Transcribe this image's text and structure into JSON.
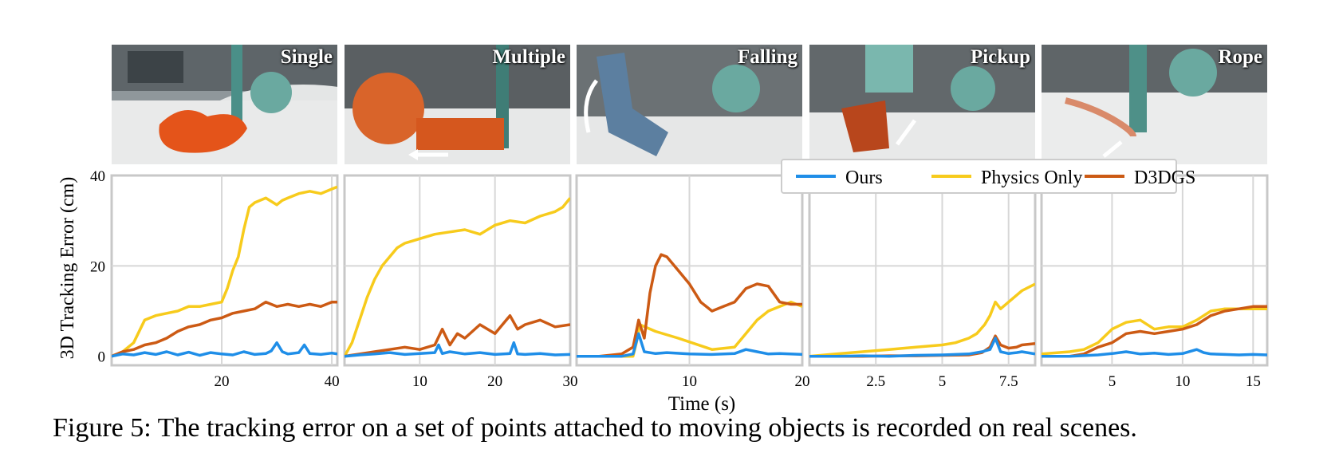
{
  "figure": {
    "caption": "Figure 5: The tracking error on a set of points attached to moving objects is recorded on real scenes.",
    "ylabel": "3D Tracking Error (cm)",
    "xlabel": "Time (s)"
  },
  "panels": [
    {
      "label": "Single"
    },
    {
      "label": "Multiple"
    },
    {
      "label": "Falling"
    },
    {
      "label": "Pickup"
    },
    {
      "label": "Rope"
    }
  ],
  "colors": {
    "ours": "#1f8ee8",
    "physics": "#f7cb1c",
    "d3dgs": "#cc5a14",
    "grid": "#d7d7d7",
    "frame": "#c8c8c8"
  },
  "legend": {
    "entries": [
      "Ours",
      "Physics Only",
      "D3DGS"
    ]
  },
  "chart_data": [
    {
      "type": "line",
      "title": "Single",
      "xlabel": "Time (s)",
      "ylabel": "3D Tracking Error (cm)",
      "xlim": [
        0,
        41
      ],
      "ylim": [
        -2,
        40
      ],
      "xticks": [
        20,
        40
      ],
      "yticks": [
        0,
        20,
        40
      ],
      "series": [
        {
          "name": "Ours",
          "x": [
            0,
            2,
            4,
            6,
            8,
            10,
            12,
            14,
            16,
            18,
            20,
            22,
            24,
            26,
            28,
            29,
            30,
            31,
            32,
            34,
            35,
            36,
            38,
            40,
            41
          ],
          "y": [
            0,
            0.5,
            0.3,
            0.8,
            0.4,
            1,
            0.3,
            0.9,
            0.2,
            0.8,
            0.5,
            0.3,
            1,
            0.4,
            0.6,
            1.2,
            3,
            1,
            0.5,
            0.8,
            2.5,
            0.6,
            0.4,
            0.7,
            0.5
          ]
        },
        {
          "name": "Physics Only",
          "x": [
            0,
            2,
            4,
            6,
            8,
            10,
            12,
            14,
            16,
            18,
            20,
            21,
            22,
            23,
            24,
            25,
            26,
            28,
            30,
            31,
            32,
            34,
            36,
            38,
            40,
            41
          ],
          "y": [
            0,
            1,
            3,
            8,
            9,
            9.5,
            10,
            11,
            11,
            11.5,
            12,
            15,
            19,
            22,
            28,
            33,
            34,
            35,
            33.5,
            34.5,
            35,
            36,
            36.5,
            36,
            37,
            37.5
          ]
        },
        {
          "name": "D3DGS",
          "x": [
            0,
            2,
            4,
            6,
            8,
            10,
            12,
            14,
            16,
            18,
            20,
            22,
            24,
            26,
            28,
            30,
            32,
            34,
            36,
            38,
            40,
            41
          ],
          "y": [
            0,
            1,
            1.5,
            2.5,
            3,
            4,
            5.5,
            6.5,
            7,
            8,
            8.5,
            9.5,
            10,
            10.5,
            12,
            11,
            11.5,
            11,
            11.5,
            11,
            12,
            12
          ]
        }
      ]
    },
    {
      "type": "line",
      "title": "Multiple",
      "xlabel": "Time (s)",
      "ylabel": "3D Tracking Error (cm)",
      "xlim": [
        0,
        30
      ],
      "ylim": [
        -2,
        40
      ],
      "xticks": [
        10,
        20,
        30
      ],
      "yticks": [
        0,
        20,
        40
      ],
      "series": [
        {
          "name": "Ours",
          "x": [
            0,
            2,
            4,
            6,
            8,
            10,
            12,
            12.5,
            13,
            14,
            16,
            18,
            20,
            22,
            22.5,
            23,
            24,
            26,
            28,
            30
          ],
          "y": [
            0,
            0.3,
            0.5,
            0.8,
            0.4,
            0.6,
            0.8,
            2.5,
            0.6,
            1,
            0.5,
            0.8,
            0.4,
            0.6,
            3,
            0.5,
            0.4,
            0.6,
            0.3,
            0.4
          ]
        },
        {
          "name": "Physics Only",
          "x": [
            0,
            1,
            2,
            3,
            4,
            5,
            6,
            7,
            8,
            9,
            10,
            12,
            14,
            16,
            18,
            20,
            22,
            24,
            26,
            28,
            29,
            30
          ],
          "y": [
            0,
            3,
            8,
            13,
            17,
            20,
            22,
            24,
            25,
            25.5,
            26,
            27,
            27.5,
            28,
            27,
            29,
            30,
            29.5,
            31,
            32,
            33,
            35
          ]
        },
        {
          "name": "D3DGS",
          "x": [
            0,
            2,
            4,
            6,
            8,
            10,
            12,
            13,
            14,
            15,
            16,
            18,
            20,
            22,
            23,
            24,
            26,
            28,
            30
          ],
          "y": [
            0,
            0.5,
            1,
            1.5,
            2,
            1.5,
            2.5,
            6,
            2.5,
            5,
            4,
            7,
            5,
            9,
            6,
            7,
            8,
            6.5,
            7
          ]
        }
      ]
    },
    {
      "type": "line",
      "title": "Falling",
      "xlabel": "Time (s)",
      "ylabel": "3D Tracking Error (cm)",
      "xlim": [
        0,
        20
      ],
      "ylim": [
        -2,
        40
      ],
      "xticks": [
        10,
        20
      ],
      "yticks": [
        0,
        20,
        40
      ],
      "series": [
        {
          "name": "Ours",
          "x": [
            0,
            2,
            4,
            5,
            5.5,
            6,
            7,
            8,
            10,
            12,
            14,
            15,
            16,
            17,
            18,
            20
          ],
          "y": [
            0,
            0,
            0,
            0.5,
            5,
            1,
            0.6,
            0.8,
            0.5,
            0.4,
            0.6,
            1.5,
            1,
            0.5,
            0.6,
            0.4
          ]
        },
        {
          "name": "Physics Only",
          "x": [
            0,
            2,
            4,
            5,
            5.3,
            5.6,
            7,
            9,
            12,
            14,
            15,
            16,
            17,
            18,
            19,
            20
          ],
          "y": [
            0,
            0,
            0,
            0,
            3,
            7,
            5.5,
            4,
            1.5,
            2,
            5,
            8,
            10,
            11,
            12,
            11
          ]
        },
        {
          "name": "D3DGS",
          "x": [
            0,
            2,
            4,
            5,
            5.5,
            6,
            6.5,
            7,
            7.5,
            8,
            9,
            10,
            11,
            12,
            13,
            14,
            15,
            16,
            17,
            18,
            19,
            20
          ],
          "y": [
            0,
            0,
            0.5,
            2,
            8,
            4,
            14,
            20,
            22.5,
            22,
            19,
            16,
            12,
            10,
            11,
            12,
            15,
            16,
            15.5,
            12,
            11.5,
            11.5
          ]
        }
      ]
    },
    {
      "type": "line",
      "title": "Pickup",
      "xlabel": "Time (s)",
      "ylabel": "3D Tracking Error (cm)",
      "xlim": [
        0,
        8.5
      ],
      "ylim": [
        -2,
        40
      ],
      "xticks": [
        2.5,
        5.0,
        7.5
      ],
      "yticks": [
        0,
        20,
        40
      ],
      "series": [
        {
          "name": "Ours",
          "x": [
            0,
            1,
            2,
            3,
            4,
            5,
            6,
            6.5,
            6.8,
            7,
            7.2,
            7.5,
            7.8,
            8,
            8.5
          ],
          "y": [
            0,
            0,
            0.1,
            0,
            0.2,
            0.3,
            0.5,
            1,
            1.5,
            4,
            1,
            0.6,
            0.8,
            1,
            0.5
          ]
        },
        {
          "name": "Physics Only",
          "x": [
            0,
            1,
            2,
            3,
            4,
            5,
            5.5,
            6,
            6.3,
            6.6,
            6.8,
            7,
            7.2,
            7.5,
            7.8,
            8,
            8.5
          ],
          "y": [
            0,
            0.5,
            1,
            1.5,
            2,
            2.5,
            3,
            4,
            5,
            7,
            9,
            12,
            10.5,
            12,
            13.5,
            14.5,
            16
          ]
        },
        {
          "name": "D3DGS",
          "x": [
            0,
            1,
            2,
            3,
            4,
            5,
            6,
            6.5,
            6.8,
            7,
            7.2,
            7.5,
            7.8,
            8,
            8.5
          ],
          "y": [
            0,
            0,
            0,
            0.1,
            0.1,
            0.2,
            0.3,
            0.8,
            2,
            4.5,
            2.5,
            1.8,
            2,
            2.5,
            2.8
          ]
        }
      ]
    },
    {
      "type": "line",
      "title": "Rope",
      "xlabel": "Time (s)",
      "ylabel": "3D Tracking Error (cm)",
      "xlim": [
        0,
        16
      ],
      "ylim": [
        -2,
        40
      ],
      "xticks": [
        5,
        10,
        15
      ],
      "yticks": [
        0,
        20,
        40
      ],
      "series": [
        {
          "name": "Ours",
          "x": [
            0,
            2,
            4,
            5,
            6,
            7,
            8,
            9,
            10,
            11,
            11.5,
            12,
            13,
            14,
            15,
            16
          ],
          "y": [
            0,
            0,
            0.3,
            0.6,
            1,
            0.5,
            0.7,
            0.4,
            0.6,
            1.5,
            0.8,
            0.5,
            0.4,
            0.3,
            0.4,
            0.3
          ]
        },
        {
          "name": "Physics Only",
          "x": [
            0,
            2,
            3,
            4,
            5,
            6,
            7,
            8,
            9,
            10,
            11,
            12,
            13,
            14,
            15,
            16
          ],
          "y": [
            0.5,
            1,
            1.5,
            3,
            6,
            7.5,
            8,
            6,
            6.5,
            6.5,
            8,
            10,
            10.5,
            10.5,
            10.5,
            10.5
          ]
        },
        {
          "name": "D3DGS",
          "x": [
            0,
            2,
            3,
            4,
            5,
            6,
            7,
            8,
            9,
            10,
            11,
            12,
            13,
            14,
            15,
            16
          ],
          "y": [
            0,
            0,
            0.5,
            2,
            3,
            5,
            5.5,
            5,
            5.5,
            6,
            7,
            9,
            10,
            10.5,
            11,
            11
          ]
        }
      ]
    }
  ]
}
